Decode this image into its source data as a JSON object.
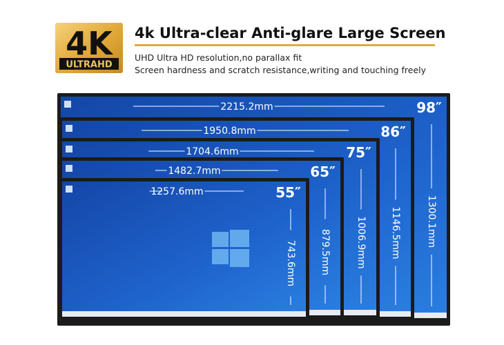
{
  "header": {
    "logo_main": "4K",
    "logo_sub": "ULTRAHD",
    "title": "4k Ultra-clear Anti-glare Large Screen",
    "lines": [
      "UHD Ultra HD resolution,no parallax fit",
      "Screen hardness and scratch resistance,writing and touching freely"
    ]
  },
  "screens": [
    {
      "size": "98″",
      "width": "2215.2mm",
      "height": "1300.1mm"
    },
    {
      "size": "86″",
      "width": "1950.8mm",
      "height": "1146.5mm"
    },
    {
      "size": "75″",
      "width": "1704.6mm",
      "height": "1006.9mm"
    },
    {
      "size": "65″",
      "width": "1482.7mm",
      "height": "879.5mm"
    },
    {
      "size": "55″",
      "width": "1257.6mm",
      "height": "743.6mm"
    }
  ]
}
